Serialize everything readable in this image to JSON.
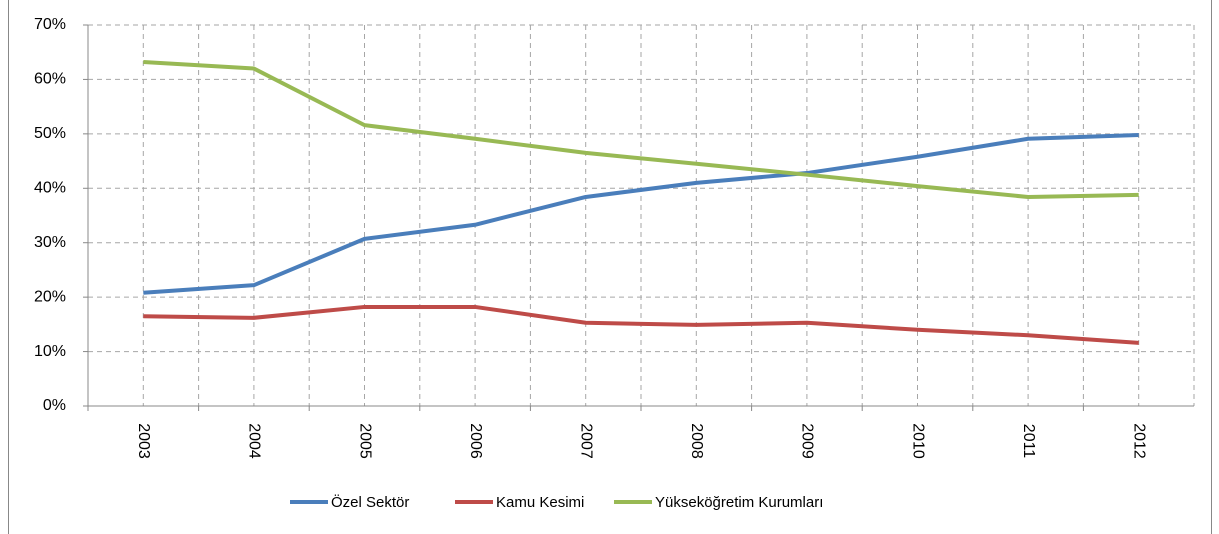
{
  "chart_data": {
    "type": "line",
    "categories": [
      "2003",
      "2004",
      "2005",
      "2006",
      "2007",
      "2008",
      "2009",
      "2010",
      "2011",
      "2012"
    ],
    "series": [
      {
        "name": "Özel Sektör",
        "color": "#4a7ebb",
        "values": [
          20.8,
          22.2,
          30.7,
          33.3,
          38.4,
          41.0,
          42.8,
          45.8,
          49.1,
          49.8
        ]
      },
      {
        "name": "Kamu Kesimi",
        "color": "#be4b48",
        "values": [
          16.5,
          16.2,
          18.2,
          18.2,
          15.3,
          14.9,
          15.3,
          14.0,
          13.0,
          11.6
        ]
      },
      {
        "name": "Yükseköğretim Kurumları",
        "color": "#98b954",
        "values": [
          63.2,
          62.0,
          51.6,
          49.1,
          46.5,
          44.5,
          42.5,
          40.4,
          38.4,
          38.8
        ]
      }
    ],
    "ylim": [
      0,
      70
    ],
    "yticks": [
      {
        "value": 0,
        "label": "0%"
      },
      {
        "value": 10,
        "label": "10%"
      },
      {
        "value": 20,
        "label": "20%"
      },
      {
        "value": 30,
        "label": "30%"
      },
      {
        "value": 40,
        "label": "40%"
      },
      {
        "value": 50,
        "label": "50%"
      },
      {
        "value": 60,
        "label": "60%"
      },
      {
        "value": 70,
        "label": "70%"
      }
    ],
    "grid": true,
    "legend": "bottom"
  }
}
